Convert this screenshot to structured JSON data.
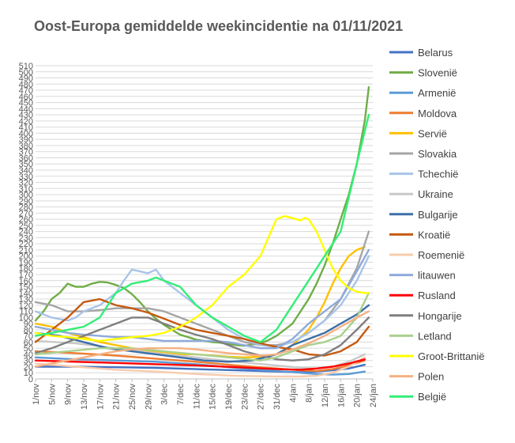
{
  "chart_data": {
    "type": "line",
    "title": "Oost-Europa gemiddelde weekincidentie na 01/11/2021",
    "xlabel": "",
    "ylabel": "",
    "ylim": [
      0,
      510
    ],
    "ytick_step": 10,
    "x_day_range": [
      0,
      84
    ],
    "x_ticks": [
      {
        "label": "1/nov",
        "day": 0
      },
      {
        "label": "5/nov",
        "day": 4
      },
      {
        "label": "9/nov",
        "day": 8
      },
      {
        "label": "13/nov",
        "day": 12
      },
      {
        "label": "17/nov",
        "day": 16
      },
      {
        "label": "21/nov",
        "day": 20
      },
      {
        "label": "25/nov",
        "day": 24
      },
      {
        "label": "29/nov",
        "day": 28
      },
      {
        "label": "3/dec",
        "day": 32
      },
      {
        "label": "7/dec",
        "day": 36
      },
      {
        "label": "11/dec",
        "day": 40
      },
      {
        "label": "15/dec",
        "day": 44
      },
      {
        "label": "19/dec",
        "day": 48
      },
      {
        "label": "23/dec",
        "day": 52
      },
      {
        "label": "27/dec",
        "day": 56
      },
      {
        "label": "31/dec",
        "day": 60
      },
      {
        "label": "4/jan",
        "day": 64
      },
      {
        "label": "8/jan",
        "day": 68
      },
      {
        "label": "12/jan",
        "day": 72
      },
      {
        "label": "16/jan",
        "day": 76
      },
      {
        "label": "20/jan",
        "day": 80
      },
      {
        "label": "24/jan",
        "day": 84
      }
    ],
    "grid": true,
    "legend_position": "right",
    "series": [
      {
        "name": "Belarus",
        "color": "#4472C4",
        "x": [
          0,
          10,
          20,
          30,
          40,
          50,
          60,
          66,
          70,
          74,
          78,
          82
        ],
        "y": [
          20,
          20,
          19,
          18,
          16,
          14,
          12,
          11,
          12,
          14,
          17,
          23
        ]
      },
      {
        "name": "Slovenië",
        "color": "#70AD47",
        "x": [
          0,
          2,
          4,
          6,
          8,
          10,
          12,
          14,
          16,
          18,
          20,
          22,
          24,
          26,
          28,
          30,
          32,
          34,
          36,
          38,
          40,
          42,
          44,
          46,
          48,
          50,
          52,
          54,
          56,
          58,
          60,
          62,
          64,
          66,
          68,
          70,
          72,
          74,
          76,
          78,
          80,
          82,
          83
        ],
        "y": [
          95,
          110,
          130,
          140,
          155,
          150,
          150,
          155,
          158,
          157,
          153,
          148,
          138,
          125,
          110,
          98,
          88,
          80,
          72,
          68,
          64,
          62,
          60,
          59,
          57,
          55,
          54,
          56,
          58,
          63,
          70,
          80,
          90,
          110,
          130,
          155,
          185,
          220,
          260,
          300,
          350,
          420,
          475
        ]
      },
      {
        "name": "Armenië",
        "color": "#5B9BD5",
        "x": [
          0,
          10,
          20,
          30,
          40,
          50,
          60,
          66,
          70,
          74,
          78,
          82
        ],
        "y": [
          35,
          32,
          30,
          28,
          24,
          18,
          13,
          10,
          8,
          7,
          8,
          12
        ]
      },
      {
        "name": "Moldova",
        "color": "#ED7D31",
        "x": [
          0,
          10,
          20,
          30,
          40,
          50,
          60,
          66,
          70,
          74,
          78,
          82
        ],
        "y": [
          45,
          42,
          38,
          33,
          28,
          22,
          17,
          14,
          13,
          16,
          22,
          30
        ]
      },
      {
        "name": "Servië",
        "color": "#FFC000",
        "x": [
          0,
          4,
          8,
          12,
          16,
          20,
          24,
          28,
          32,
          36,
          40,
          44,
          48,
          52,
          56,
          60,
          64,
          68,
          70,
          72,
          74,
          76,
          78,
          80,
          82
        ],
        "y": [
          90,
          85,
          75,
          68,
          60,
          55,
          50,
          45,
          42,
          40,
          40,
          38,
          36,
          35,
          36,
          40,
          55,
          80,
          100,
          125,
          155,
          180,
          200,
          210,
          215
        ]
      },
      {
        "name": "Slovakia",
        "color": "#A5A5A5",
        "x": [
          0,
          4,
          8,
          12,
          16,
          20,
          24,
          28,
          32,
          36,
          40,
          44,
          48,
          52,
          56,
          60,
          64,
          68,
          72,
          76,
          80,
          83
        ],
        "y": [
          125,
          120,
          110,
          110,
          112,
          115,
          115,
          115,
          110,
          100,
          90,
          80,
          70,
          60,
          55,
          55,
          60,
          75,
          95,
          130,
          180,
          240
        ]
      },
      {
        "name": "Tchechië",
        "color": "#A9C4E8",
        "x": [
          0,
          4,
          8,
          10,
          12,
          16,
          20,
          22,
          24,
          26,
          28,
          30,
          32,
          36,
          40,
          44,
          48,
          52,
          56,
          60,
          64,
          68,
          72,
          76,
          80,
          83
        ],
        "y": [
          110,
          100,
          95,
          100,
          110,
          120,
          140,
          160,
          178,
          175,
          172,
          178,
          160,
          140,
          120,
          100,
          80,
          65,
          55,
          52,
          60,
          75,
          95,
          120,
          160,
          200
        ]
      },
      {
        "name": "Ukraine",
        "color": "#C9C9C9",
        "x": [
          0,
          10,
          20,
          30,
          40,
          50,
          60,
          66,
          70,
          74,
          78,
          82
        ],
        "y": [
          62,
          58,
          50,
          42,
          35,
          28,
          22,
          18,
          17,
          20,
          28,
          40
        ]
      },
      {
        "name": "Bulgarije",
        "color": "#3C6FA8",
        "x": [
          0,
          6,
          12,
          18,
          24,
          30,
          36,
          42,
          48,
          54,
          60,
          64,
          68,
          72,
          76,
          80,
          83
        ],
        "y": [
          75,
          70,
          60,
          50,
          45,
          40,
          35,
          30,
          28,
          30,
          40,
          55,
          65,
          75,
          90,
          105,
          120
        ]
      },
      {
        "name": "Kroatië",
        "color": "#C55A11",
        "x": [
          0,
          4,
          8,
          12,
          16,
          20,
          24,
          28,
          32,
          36,
          40,
          44,
          48,
          52,
          56,
          60,
          64,
          68,
          72,
          76,
          80,
          83
        ],
        "y": [
          60,
          80,
          100,
          125,
          130,
          120,
          115,
          108,
          98,
          88,
          80,
          75,
          70,
          65,
          58,
          52,
          48,
          40,
          38,
          45,
          60,
          85
        ]
      },
      {
        "name": "Roemenië",
        "color": "#F8CBAD",
        "x": [
          0,
          10,
          20,
          30,
          40,
          50,
          60,
          66,
          70,
          74,
          78,
          82
        ],
        "y": [
          25,
          20,
          15,
          12,
          8,
          5,
          4,
          4,
          5,
          10,
          20,
          35
        ]
      },
      {
        "name": "litauwen",
        "color": "#8FAADC",
        "x": [
          0,
          4,
          8,
          12,
          16,
          20,
          24,
          28,
          32,
          36,
          40,
          44,
          48,
          52,
          56,
          60,
          64,
          68,
          72,
          76,
          80,
          83
        ],
        "y": [
          85,
          80,
          75,
          72,
          70,
          68,
          68,
          65,
          62,
          62,
          62,
          62,
          60,
          55,
          50,
          50,
          65,
          90,
          110,
          130,
          175,
          210
        ]
      },
      {
        "name": "Rusland",
        "color": "#FF0000",
        "x": [
          0,
          10,
          20,
          30,
          40,
          50,
          60,
          66,
          70,
          74,
          78,
          82
        ],
        "y": [
          30,
          28,
          26,
          24,
          22,
          19,
          16,
          15,
          17,
          20,
          25,
          32
        ]
      },
      {
        "name": "Hongarije",
        "color": "#7F7F7F",
        "x": [
          0,
          4,
          8,
          12,
          16,
          20,
          24,
          28,
          32,
          36,
          40,
          44,
          48,
          52,
          56,
          60,
          64,
          68,
          72,
          76,
          80,
          83
        ],
        "y": [
          42,
          50,
          60,
          70,
          80,
          90,
          100,
          100,
          90,
          80,
          72,
          65,
          55,
          45,
          38,
          32,
          30,
          32,
          40,
          55,
          80,
          100
        ]
      },
      {
        "name": "Letland",
        "color": "#A9D18E",
        "x": [
          0,
          8,
          16,
          24,
          32,
          40,
          48,
          56,
          60,
          64,
          68,
          72,
          76,
          80,
          83
        ],
        "y": [
          40,
          45,
          50,
          50,
          45,
          40,
          35,
          30,
          35,
          45,
          55,
          60,
          70,
          100,
          140
        ]
      },
      {
        "name": "Groot-Brittanië",
        "color": "#FFFF00",
        "x": [
          0,
          4,
          8,
          12,
          16,
          20,
          24,
          28,
          32,
          36,
          40,
          44,
          48,
          52,
          56,
          58,
          60,
          62,
          64,
          66,
          67,
          68,
          70,
          72,
          74,
          76,
          78,
          80,
          82,
          83
        ],
        "y": [
          75,
          70,
          68,
          65,
          62,
          65,
          68,
          70,
          75,
          85,
          100,
          120,
          150,
          170,
          200,
          230,
          260,
          265,
          262,
          258,
          262,
          260,
          240,
          210,
          180,
          160,
          148,
          142,
          140,
          140
        ]
      },
      {
        "name": "Polen",
        "color": "#F4B183",
        "x": [
          0,
          4,
          8,
          12,
          16,
          20,
          24,
          28,
          32,
          36,
          40,
          44,
          48,
          52,
          56,
          60,
          64,
          68,
          72,
          76,
          80,
          83
        ],
        "y": [
          20,
          25,
          30,
          35,
          40,
          45,
          48,
          50,
          50,
          50,
          48,
          45,
          42,
          40,
          38,
          40,
          48,
          58,
          70,
          85,
          100,
          110
        ]
      },
      {
        "name": "België",
        "color": "#33EE77",
        "x": [
          0,
          4,
          8,
          12,
          16,
          20,
          24,
          28,
          30,
          32,
          34,
          36,
          40,
          44,
          48,
          52,
          56,
          60,
          64,
          68,
          72,
          76,
          80,
          83
        ],
        "y": [
          70,
          75,
          80,
          85,
          100,
          140,
          155,
          160,
          165,
          160,
          155,
          150,
          120,
          100,
          85,
          70,
          60,
          80,
          120,
          160,
          200,
          240,
          350,
          430
        ]
      }
    ]
  }
}
